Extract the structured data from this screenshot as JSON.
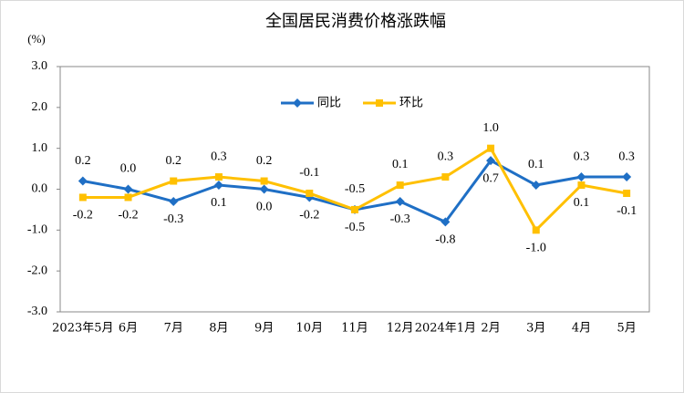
{
  "chart_data": {
    "type": "line",
    "title": "全国居民消费价格涨跌幅",
    "y_label": "(%)",
    "categories": [
      "2023年5月",
      "6月",
      "7月",
      "8月",
      "9月",
      "10月",
      "11月",
      "12月",
      "2024年1月",
      "2月",
      "3月",
      "4月",
      "5月"
    ],
    "series": [
      {
        "name": "同比",
        "color": "#1f6fc5",
        "marker": "diamond",
        "values": [
          0.2,
          0.0,
          -0.3,
          0.1,
          0.0,
          -0.2,
          -0.5,
          -0.3,
          -0.8,
          0.7,
          0.1,
          0.3,
          0.3
        ],
        "value_labels": [
          "0.2",
          "0.0",
          "-0.3",
          "0.1",
          "0.0",
          "-0.2",
          "-0.5",
          "-0.3",
          "-0.8",
          "0.7",
          "0.1",
          "0.3",
          "0.3"
        ]
      },
      {
        "name": "环比",
        "color": "#ffc000",
        "marker": "square",
        "values": [
          -0.2,
          -0.2,
          0.2,
          0.3,
          0.2,
          -0.1,
          -0.5,
          0.1,
          0.3,
          1.0,
          -1.0,
          0.1,
          -0.1
        ],
        "value_labels": [
          "-0.2",
          "-0.2",
          "0.2",
          "0.3",
          "0.2",
          "-0.1",
          "-0.5",
          "0.1",
          "0.3",
          "1.0",
          "-1.0",
          "0.1",
          "-0.1"
        ]
      }
    ],
    "ylim": [
      -3,
      3
    ],
    "yticks": [
      {
        "value": -3,
        "label": "-3.0"
      },
      {
        "value": -2,
        "label": "-2.0"
      },
      {
        "value": -1,
        "label": "-1.0"
      },
      {
        "value": 0,
        "label": "0.0"
      },
      {
        "value": 1,
        "label": "1.0"
      },
      {
        "value": 2,
        "label": "2.0"
      },
      {
        "value": 3,
        "label": "3.0"
      }
    ],
    "legend_position": "top"
  }
}
